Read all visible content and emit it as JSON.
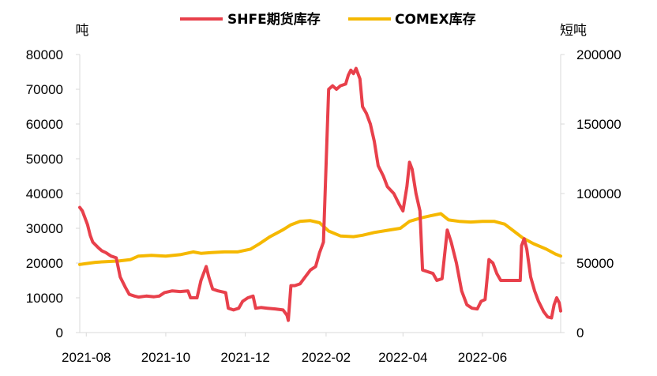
{
  "chart_data": {
    "type": "line",
    "title": "",
    "legend_position": "top",
    "left_axis": {
      "unit": "吨",
      "ylim": [
        0,
        80000
      ],
      "ticks": [
        "0",
        "10000",
        "20000",
        "30000",
        "40000",
        "50000",
        "60000",
        "70000",
        "80000"
      ]
    },
    "right_axis": {
      "unit": "短吨",
      "ylim": [
        0,
        200000
      ],
      "ticks": [
        "0",
        "50000",
        "100000",
        "150000",
        "200000"
      ]
    },
    "x_axis": {
      "range": [
        "2021-07-27",
        "2022-07-31"
      ],
      "ticks": [
        "2021-08",
        "2021-10",
        "2021-12",
        "2022-02",
        "2022-04",
        "2022-06"
      ],
      "tick_dates": [
        "2021-08-01",
        "2021-10-01",
        "2021-12-01",
        "2022-02-01",
        "2022-04-01",
        "2022-06-01"
      ]
    },
    "grid": false,
    "series": [
      {
        "name": "SHFE期货库存",
        "axis": "left",
        "color": "#e8404b",
        "points": [
          [
            "2021-07-27",
            36000
          ],
          [
            "2021-07-29",
            35000
          ],
          [
            "2021-08-02",
            31000
          ],
          [
            "2021-08-04",
            28000
          ],
          [
            "2021-08-06",
            26000
          ],
          [
            "2021-08-10",
            24500
          ],
          [
            "2021-08-13",
            23500
          ],
          [
            "2021-08-16",
            23000
          ],
          [
            "2021-08-20",
            22000
          ],
          [
            "2021-08-24",
            21500
          ],
          [
            "2021-08-27",
            16000
          ],
          [
            "2021-08-31",
            13000
          ],
          [
            "2021-09-03",
            11000
          ],
          [
            "2021-09-07",
            10500
          ],
          [
            "2021-09-10",
            10200
          ],
          [
            "2021-09-16",
            10500
          ],
          [
            "2021-09-22",
            10300
          ],
          [
            "2021-09-26",
            10500
          ],
          [
            "2021-09-30",
            11500
          ],
          [
            "2021-10-06",
            12000
          ],
          [
            "2021-10-12",
            11800
          ],
          [
            "2021-10-18",
            12000
          ],
          [
            "2021-10-20",
            10000
          ],
          [
            "2021-10-25",
            10000
          ],
          [
            "2021-10-28",
            15000
          ],
          [
            "2021-11-01",
            19000
          ],
          [
            "2021-11-03",
            16000
          ],
          [
            "2021-11-06",
            12500
          ],
          [
            "2021-11-10",
            12000
          ],
          [
            "2021-11-16",
            11500
          ],
          [
            "2021-11-18",
            7000
          ],
          [
            "2021-11-22",
            6500
          ],
          [
            "2021-11-26",
            7000
          ],
          [
            "2021-11-29",
            9000
          ],
          [
            "2021-12-03",
            10000
          ],
          [
            "2021-12-07",
            10500
          ],
          [
            "2021-12-09",
            7000
          ],
          [
            "2021-12-13",
            7200
          ],
          [
            "2021-12-18",
            7000
          ],
          [
            "2021-12-24",
            6800
          ],
          [
            "2021-12-30",
            6500
          ],
          [
            "2022-01-02",
            5000
          ],
          [
            "2022-01-03",
            3500
          ],
          [
            "2022-01-05",
            13500
          ],
          [
            "2022-01-08",
            13500
          ],
          [
            "2022-01-12",
            14000
          ],
          [
            "2022-01-16",
            16000
          ],
          [
            "2022-01-20",
            18000
          ],
          [
            "2022-01-24",
            19000
          ],
          [
            "2022-01-27",
            23000
          ],
          [
            "2022-01-30",
            26000
          ],
          [
            "2022-02-03",
            70000
          ],
          [
            "2022-02-06",
            71000
          ],
          [
            "2022-02-09",
            70000
          ],
          [
            "2022-02-12",
            71000
          ],
          [
            "2022-02-16",
            71500
          ],
          [
            "2022-02-18",
            74000
          ],
          [
            "2022-02-20",
            75500
          ],
          [
            "2022-02-22",
            74500
          ],
          [
            "2022-02-24",
            76000
          ],
          [
            "2022-02-27",
            73000
          ],
          [
            "2022-03-01",
            65000
          ],
          [
            "2022-03-04",
            63000
          ],
          [
            "2022-03-07",
            60000
          ],
          [
            "2022-03-10",
            55000
          ],
          [
            "2022-03-13",
            48000
          ],
          [
            "2022-03-17",
            45000
          ],
          [
            "2022-03-20",
            42000
          ],
          [
            "2022-03-25",
            40000
          ],
          [
            "2022-03-29",
            37000
          ],
          [
            "2022-04-01",
            35000
          ],
          [
            "2022-04-04",
            42000
          ],
          [
            "2022-04-06",
            49000
          ],
          [
            "2022-04-08",
            47000
          ],
          [
            "2022-04-11",
            40000
          ],
          [
            "2022-04-14",
            35000
          ],
          [
            "2022-04-16",
            18000
          ],
          [
            "2022-04-20",
            17500
          ],
          [
            "2022-04-24",
            17000
          ],
          [
            "2022-04-27",
            15000
          ],
          [
            "2022-05-01",
            15500
          ],
          [
            "2022-05-05",
            29500
          ],
          [
            "2022-05-08",
            26000
          ],
          [
            "2022-05-12",
            20000
          ],
          [
            "2022-05-16",
            12000
          ],
          [
            "2022-05-20",
            8000
          ],
          [
            "2022-05-24",
            7000
          ],
          [
            "2022-05-28",
            6800
          ],
          [
            "2022-05-31",
            9000
          ],
          [
            "2022-06-03",
            9500
          ],
          [
            "2022-06-06",
            21000
          ],
          [
            "2022-06-09",
            20000
          ],
          [
            "2022-06-12",
            17000
          ],
          [
            "2022-06-15",
            15000
          ],
          [
            "2022-06-18",
            15000
          ],
          [
            "2022-06-21",
            15000
          ],
          [
            "2022-06-24",
            15000
          ],
          [
            "2022-06-27",
            15000
          ],
          [
            "2022-06-30",
            15000
          ],
          [
            "2022-07-01",
            25000
          ],
          [
            "2022-07-03",
            27000
          ],
          [
            "2022-07-05",
            24000
          ],
          [
            "2022-07-08",
            16000
          ],
          [
            "2022-07-11",
            12000
          ],
          [
            "2022-07-14",
            9000
          ],
          [
            "2022-07-18",
            6000
          ],
          [
            "2022-07-21",
            4500
          ],
          [
            "2022-07-24",
            4200
          ],
          [
            "2022-07-26",
            8000
          ],
          [
            "2022-07-28",
            10000
          ],
          [
            "2022-07-30",
            8500
          ],
          [
            "2022-07-31",
            6200
          ]
        ]
      },
      {
        "name": "COMEX库存",
        "axis": "right",
        "color": "#f5b800",
        "points": [
          [
            "2021-07-27",
            49000
          ],
          [
            "2021-07-31",
            49500
          ],
          [
            "2021-08-08",
            50500
          ],
          [
            "2021-08-16",
            51000
          ],
          [
            "2021-08-26",
            51500
          ],
          [
            "2021-09-04",
            52500
          ],
          [
            "2021-09-10",
            55000
          ],
          [
            "2021-09-20",
            55500
          ],
          [
            "2021-10-01",
            55000
          ],
          [
            "2021-10-12",
            56000
          ],
          [
            "2021-10-22",
            58000
          ],
          [
            "2021-10-28",
            57000
          ],
          [
            "2021-11-05",
            57500
          ],
          [
            "2021-11-15",
            58000
          ],
          [
            "2021-11-25",
            58000
          ],
          [
            "2021-12-05",
            60000
          ],
          [
            "2021-12-12",
            64000
          ],
          [
            "2021-12-20",
            69000
          ],
          [
            "2021-12-30",
            74000
          ],
          [
            "2022-01-05",
            77500
          ],
          [
            "2022-01-12",
            80000
          ],
          [
            "2022-01-20",
            80500
          ],
          [
            "2022-01-27",
            79000
          ],
          [
            "2022-02-03",
            73000
          ],
          [
            "2022-02-12",
            69500
          ],
          [
            "2022-02-22",
            69000
          ],
          [
            "2022-03-01",
            70000
          ],
          [
            "2022-03-10",
            72000
          ],
          [
            "2022-03-20",
            73500
          ],
          [
            "2022-03-30",
            75000
          ],
          [
            "2022-04-06",
            80000
          ],
          [
            "2022-04-15",
            82500
          ],
          [
            "2022-04-22",
            84000
          ],
          [
            "2022-04-30",
            85500
          ],
          [
            "2022-05-06",
            81000
          ],
          [
            "2022-05-14",
            80000
          ],
          [
            "2022-05-23",
            79500
          ],
          [
            "2022-06-01",
            80000
          ],
          [
            "2022-06-10",
            80000
          ],
          [
            "2022-06-18",
            78000
          ],
          [
            "2022-06-25",
            73000
          ],
          [
            "2022-07-02",
            68000
          ],
          [
            "2022-07-10",
            64000
          ],
          [
            "2022-07-20",
            60000
          ],
          [
            "2022-07-27",
            56500
          ],
          [
            "2022-07-31",
            55000
          ]
        ]
      }
    ]
  }
}
